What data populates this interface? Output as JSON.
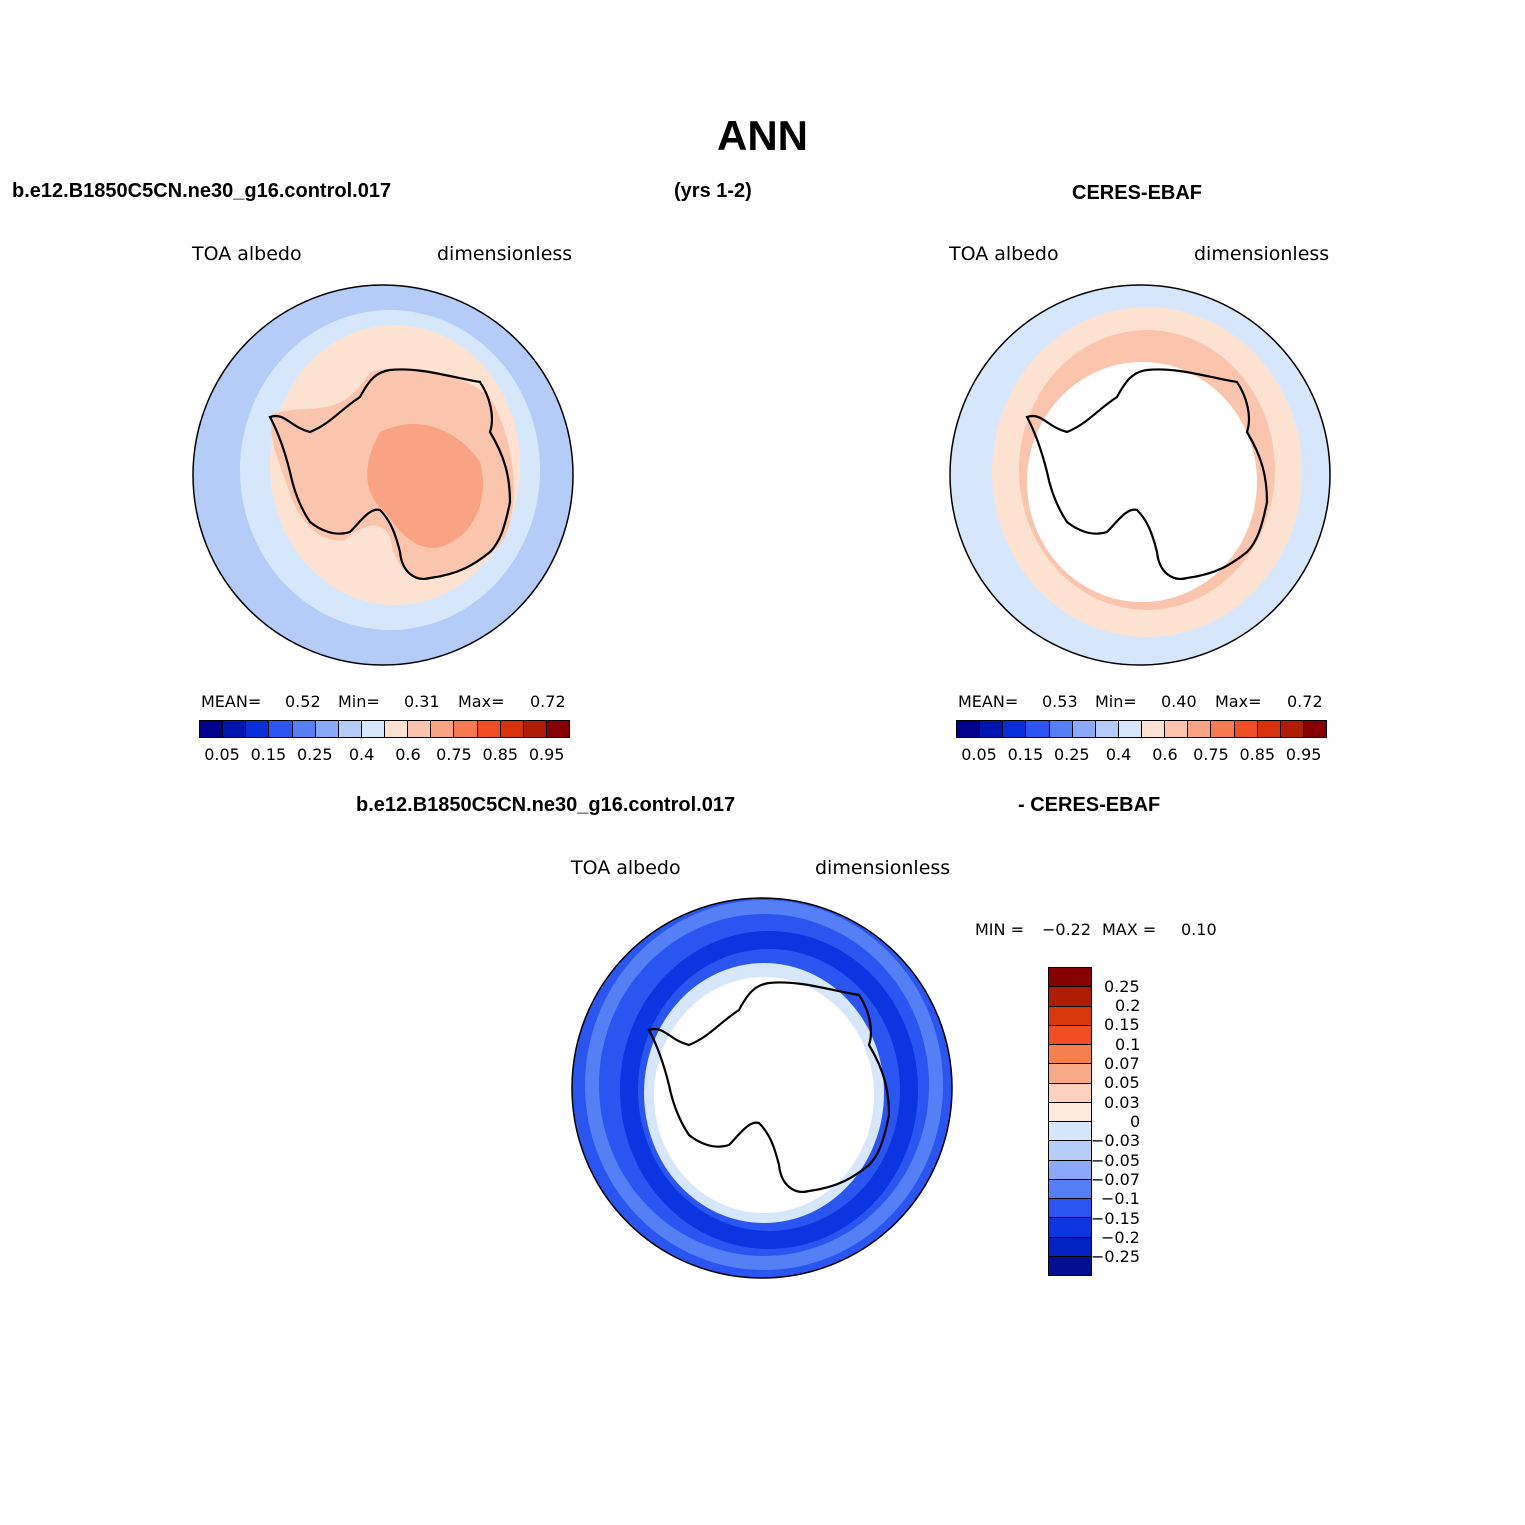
{
  "title": "ANN",
  "top_left_header": "b.e12.B1850C5CN.ne30_g16.control.017",
  "top_mid_header": "(yrs 1-2)",
  "top_right_header": "CERES-EBAF",
  "bottom_left_header": "b.e12.B1850C5CN.ne30_g16.control.017",
  "bottom_right_header": "- CERES-EBAF",
  "panels": {
    "model": {
      "variable": "TOA  albedo",
      "units": "dimensionless",
      "mean_label": "MEAN=",
      "mean": "0.52",
      "min_label": "Min=",
      "min": "0.31",
      "max_label": "Max=",
      "max": "0.72"
    },
    "obs": {
      "variable": "TOA  albedo",
      "units": "dimensionless",
      "mean_label": "MEAN=",
      "mean": "0.53",
      "min_label": "Min=",
      "min": "0.40",
      "max_label": "Max=",
      "max": "0.72"
    },
    "diff": {
      "variable": "TOA  albedo",
      "units": "dimensionless",
      "min_label": "MIN =",
      "min": "−0.22",
      "max_label": "MAX =",
      "max": "0.10"
    }
  },
  "albedo_colorbar": {
    "colors": [
      "#00008f",
      "#0016b0",
      "#0a2fd9",
      "#2b55f0",
      "#5580f5",
      "#8aaaf7",
      "#b6cdf8",
      "#d7e7fb",
      "#fde2d2",
      "#fbc5ad",
      "#f7a384",
      "#f57a52",
      "#f04d22",
      "#d9320a",
      "#b01d05",
      "#870000"
    ],
    "tick_labels": [
      "0.05",
      "0.15",
      "0.25",
      "0.4",
      "0.6",
      "0.75",
      "0.85",
      "0.95"
    ]
  },
  "diff_colorbar": {
    "colors": [
      "#870000",
      "#b01d05",
      "#d9390a",
      "#f04d22",
      "#f5804e",
      "#f8aa88",
      "#fcd2be",
      "#fde8dc",
      "#d7e7fb",
      "#b6cdf8",
      "#8aaaf7",
      "#5580f5",
      "#2b55f0",
      "#0a35e0",
      "#0022c0",
      "#00108f"
    ],
    "tick_labels": [
      "0.25",
      "0.2",
      "0.15",
      "0.1",
      "0.07",
      "0.05",
      "0.03",
      "0",
      "−0.03",
      "−0.05",
      "−0.07",
      "−0.1",
      "−0.15",
      "−0.2",
      "−0.25"
    ]
  },
  "map_colors": {
    "ocean_light": "#b5ccf8",
    "very_light_blue": "#d7e7fb",
    "light_peach": "#fde2d2",
    "peach": "#fbc5ad",
    "salmon": "#f7a384",
    "diff_blue": "#2b55f0",
    "diff_mid_blue": "#5580f5",
    "diff_dark_blue": "#0a35e0",
    "diff_pale_blue": "#8aaaf7",
    "missing": "#ffffff"
  }
}
